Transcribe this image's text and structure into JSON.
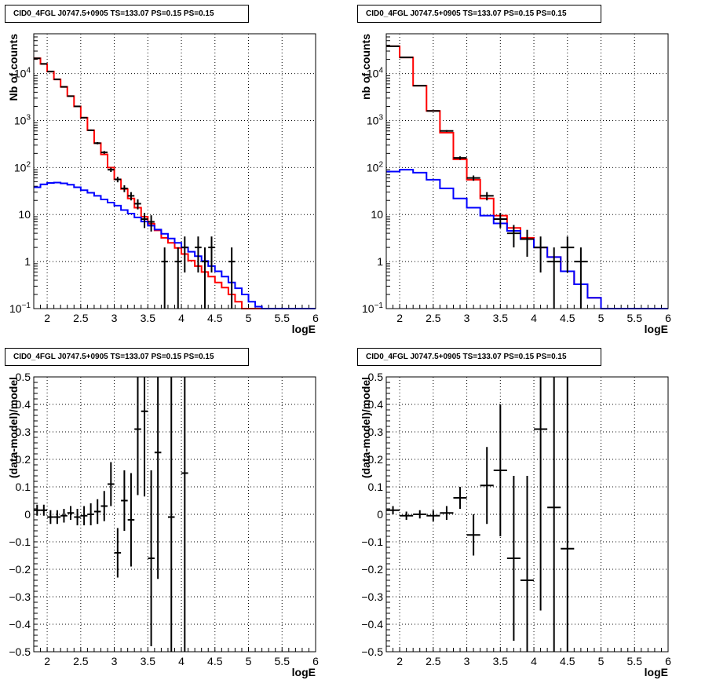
{
  "chart_data": [
    {
      "type": "line",
      "title": "CID0_4FGL J0747.5+0905 TS=133.07 PS=0.15 PS=0.15",
      "xlabel": "logE",
      "ylabel": "Nb of counts",
      "ylog": true,
      "xlim": [
        1.8,
        6.0
      ],
      "ylim": [
        0.1,
        70000
      ],
      "xticks": [
        2,
        2.5,
        3,
        3.5,
        4,
        4.5,
        5,
        5.5,
        6
      ],
      "xtick_labels": [
        "2",
        "2.5",
        "3",
        "3.5",
        "4",
        "4.5",
        "5",
        "5.5",
        "6"
      ],
      "yticks": [
        0.1,
        1,
        10,
        100,
        1000,
        10000
      ],
      "ytick_labels": [
        "10^-1",
        "1",
        "10",
        "10^2",
        "10^3",
        "10^4"
      ],
      "grid": true,
      "bin_edges": [
        1.8,
        1.9,
        2.0,
        2.1,
        2.2,
        2.3,
        2.4,
        2.5,
        2.6,
        2.7,
        2.8,
        2.9,
        3.0,
        3.1,
        3.2,
        3.3,
        3.4,
        3.5,
        3.6,
        3.7,
        3.8,
        3.9,
        4.0,
        4.1,
        4.2,
        4.3,
        4.4,
        4.5,
        4.6,
        4.7,
        4.8,
        4.9,
        5.0,
        5.1,
        5.2,
        5.3,
        5.4,
        5.5,
        5.6,
        5.7,
        5.8,
        5.9,
        6.0
      ],
      "series": [
        {
          "color": "#ff0000",
          "style": "step",
          "values": [
            21000,
            16000,
            11000,
            7500,
            5200,
            3300,
            2000,
            1150,
            620,
            330,
            190,
            100,
            56,
            35,
            22,
            14,
            9,
            6.4,
            4.6,
            3.2,
            2.5,
            1.95,
            1.45,
            1.05,
            0.8,
            0.6,
            0.48,
            0.36,
            0.28,
            0.2,
            0.14,
            0.1,
            0.1,
            0.1,
            0.1,
            0.1,
            0.1,
            0.1,
            0.1,
            0.1,
            0.1,
            0.1
          ]
        },
        {
          "color": "#0000ff",
          "style": "step",
          "values": [
            38,
            44,
            47,
            48,
            46,
            43,
            38,
            33,
            29,
            25,
            21,
            18,
            15.5,
            12.5,
            10.5,
            8.7,
            7.1,
            5.8,
            4.8,
            3.9,
            3.1,
            2.5,
            2.0,
            1.62,
            1.3,
            1.03,
            0.8,
            0.62,
            0.48,
            0.36,
            0.27,
            0.2,
            0.14,
            0.11,
            0.1,
            0.1,
            0.1,
            0.1,
            0.1,
            0.1,
            0.1,
            0.1
          ]
        },
        {
          "color": "#000000",
          "style": "points",
          "points": [
            [
              1.85,
              21000
            ],
            [
              1.95,
              16000
            ],
            [
              2.05,
              11000
            ],
            [
              2.15,
              7500
            ],
            [
              2.25,
              5200
            ],
            [
              2.35,
              3300
            ],
            [
              2.45,
              2000
            ],
            [
              2.55,
              1150
            ],
            [
              2.65,
              620
            ],
            [
              2.75,
              330
            ],
            [
              2.85,
              210
            ],
            [
              2.95,
              90
            ],
            [
              3.05,
              56
            ],
            [
              3.15,
              36
            ],
            [
              3.25,
              25
            ],
            [
              3.35,
              17
            ],
            [
              3.45,
              8
            ],
            [
              3.55,
              7
            ],
            [
              3.75,
              1
            ],
            [
              3.95,
              1
            ],
            [
              4.05,
              2
            ],
            [
              4.25,
              2
            ],
            [
              4.35,
              1
            ],
            [
              4.45,
              2
            ],
            [
              4.75,
              1
            ]
          ]
        }
      ]
    },
    {
      "type": "line",
      "title": "CID0_4FGL J0747.5+0905 TS=133.07 PS=0.15 PS=0.15",
      "xlabel": "logE",
      "ylabel": "nb of counts",
      "ylog": true,
      "xlim": [
        1.8,
        6.0
      ],
      "ylim": [
        0.1,
        70000
      ],
      "xticks": [
        2,
        2.5,
        3,
        3.5,
        4,
        4.5,
        5,
        5.5,
        6
      ],
      "xtick_labels": [
        "2",
        "2.5",
        "3",
        "3.5",
        "4",
        "4.5",
        "5",
        "5.5",
        "6"
      ],
      "yticks": [
        0.1,
        1,
        10,
        100,
        1000,
        10000
      ],
      "ytick_labels": [
        "10^-1",
        "1",
        "10",
        "10^2",
        "10^3",
        "10^4"
      ],
      "grid": true,
      "bin_edges": [
        1.8,
        2.0,
        2.2,
        2.4,
        2.6,
        2.8,
        3.0,
        3.2,
        3.4,
        3.6,
        3.8,
        4.0,
        4.2,
        4.4,
        4.6,
        4.8,
        5.0,
        5.2,
        5.4,
        5.6,
        5.8,
        6.0
      ],
      "series": [
        {
          "color": "#ff0000",
          "style": "step",
          "values": [
            38000,
            22000,
            5500,
            1600,
            550,
            150,
            55,
            22,
            9.5,
            5.2,
            3.2,
            2.0,
            1.25,
            0.62,
            0.33,
            0.17,
            0.1,
            0.1,
            0.1,
            0.1,
            0.1
          ]
        },
        {
          "color": "#0000ff",
          "style": "step",
          "values": [
            82,
            90,
            78,
            55,
            36,
            22,
            14,
            9.5,
            6.5,
            4.5,
            3.0,
            2.0,
            1.25,
            0.62,
            0.33,
            0.17,
            0.1,
            0.1,
            0.1,
            0.1,
            0.1
          ]
        },
        {
          "color": "#000000",
          "style": "points",
          "points": [
            [
              1.9,
              38000
            ],
            [
              2.1,
              22000
            ],
            [
              2.3,
              5500
            ],
            [
              2.5,
              1600
            ],
            [
              2.7,
              600
            ],
            [
              2.9,
              160
            ],
            [
              3.1,
              60
            ],
            [
              3.3,
              25
            ],
            [
              3.5,
              8
            ],
            [
              3.7,
              4
            ],
            [
              3.9,
              3
            ],
            [
              4.1,
              2
            ],
            [
              4.3,
              1
            ],
            [
              4.5,
              2
            ],
            [
              4.7,
              1
            ]
          ]
        }
      ]
    },
    {
      "type": "scatter",
      "title": "CID0_4FGL J0747.5+0905 TS=133.07 PS=0.15 PS=0.15",
      "xlabel": "logE",
      "ylabel": "(data-model)/model",
      "xlim": [
        1.8,
        6.0
      ],
      "ylim": [
        -0.5,
        0.5
      ],
      "xticks": [
        2,
        2.5,
        3,
        3.5,
        4,
        4.5,
        5,
        5.5,
        6
      ],
      "xtick_labels": [
        "2",
        "2.5",
        "3",
        "3.5",
        "4",
        "4.5",
        "5",
        "5.5",
        "6"
      ],
      "yticks": [
        -0.5,
        -0.4,
        -0.3,
        -0.2,
        -0.1,
        0,
        0.1,
        0.2,
        0.3,
        0.4,
        0.5
      ],
      "ytick_labels": [
        "−0.5",
        "−0.4",
        "−0.3",
        "−0.2",
        "−0.1",
        "0",
        "0.1",
        "0.2",
        "0.3",
        "0.4",
        "0.5"
      ],
      "grid": true,
      "xerr": 0.05,
      "points": [
        [
          1.85,
          0.015,
          0.02
        ],
        [
          1.95,
          0.015,
          0.02
        ],
        [
          2.05,
          -0.01,
          0.025
        ],
        [
          2.15,
          -0.01,
          0.025
        ],
        [
          2.25,
          -0.005,
          0.025
        ],
        [
          2.35,
          0.005,
          0.025
        ],
        [
          2.45,
          -0.01,
          0.03
        ],
        [
          2.55,
          -0.005,
          0.035
        ],
        [
          2.65,
          0.0,
          0.04
        ],
        [
          2.75,
          0.01,
          0.045
        ],
        [
          2.85,
          0.03,
          0.055
        ],
        [
          2.95,
          0.11,
          0.08
        ],
        [
          3.05,
          -0.14,
          0.09
        ],
        [
          3.15,
          0.05,
          0.11
        ],
        [
          3.25,
          -0.02,
          0.17
        ],
        [
          3.35,
          0.31,
          0.24
        ],
        [
          3.45,
          0.375,
          0.31
        ],
        [
          3.55,
          -0.16,
          0.32
        ],
        [
          3.65,
          0.225,
          0.46
        ],
        [
          3.85,
          -0.01,
          0.85
        ],
        [
          4.05,
          0.15,
          0.85
        ]
      ]
    },
    {
      "type": "scatter",
      "title": "CID0_4FGL J0747.5+0905 TS=133.07 PS=0.15 PS=0.15",
      "xlabel": "logE",
      "ylabel": "(data-model)/model",
      "xlim": [
        1.8,
        6.0
      ],
      "ylim": [
        -0.5,
        0.5
      ],
      "xticks": [
        2,
        2.5,
        3,
        3.5,
        4,
        4.5,
        5,
        5.5,
        6
      ],
      "xtick_labels": [
        "2",
        "2.5",
        "3",
        "3.5",
        "4",
        "4.5",
        "5",
        "5.5",
        "6"
      ],
      "yticks": [
        -0.5,
        -0.4,
        -0.3,
        -0.2,
        -0.1,
        0,
        0.1,
        0.2,
        0.3,
        0.4,
        0.5
      ],
      "ytick_labels": [
        "−0.5",
        "−0.4",
        "−0.3",
        "−0.2",
        "−0.1",
        "0",
        "0.1",
        "0.2",
        "0.3",
        "0.4",
        "0.5"
      ],
      "grid": true,
      "xerr": 0.1,
      "points": [
        [
          1.9,
          0.015,
          0.015
        ],
        [
          2.1,
          -0.005,
          0.015
        ],
        [
          2.3,
          0.0,
          0.015
        ],
        [
          2.5,
          -0.005,
          0.02
        ],
        [
          2.7,
          0.005,
          0.025
        ],
        [
          2.9,
          0.06,
          0.04
        ],
        [
          3.1,
          -0.075,
          0.075
        ],
        [
          3.3,
          0.105,
          0.14
        ],
        [
          3.5,
          0.16,
          0.24
        ],
        [
          3.7,
          -0.16,
          0.3
        ],
        [
          3.9,
          -0.24,
          0.38
        ],
        [
          4.1,
          0.31,
          0.66
        ],
        [
          4.3,
          0.025,
          0.85
        ],
        [
          4.5,
          -0.125,
          0.85
        ]
      ]
    }
  ]
}
